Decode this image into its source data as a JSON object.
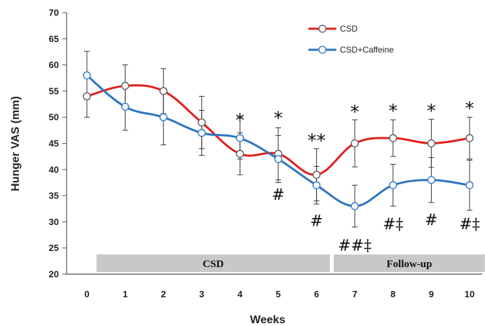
{
  "chart_data": {
    "type": "line",
    "title": "",
    "xlabel": "Weeks",
    "ylabel": "Hunger VAS (mm)",
    "x": [
      0,
      1,
      2,
      3,
      4,
      5,
      6,
      7,
      8,
      9,
      10
    ],
    "x_tick_labels": [
      "0",
      "1",
      "2",
      "3",
      "4",
      "5",
      "6",
      "7",
      "8",
      "9",
      "10"
    ],
    "ylim": [
      20,
      70
    ],
    "y_ticks": [
      20,
      25,
      30,
      35,
      40,
      45,
      50,
      55,
      60,
      65,
      70
    ],
    "y_tick_labels": [
      "20",
      "25",
      "30",
      "35",
      "40",
      "45",
      "50",
      "55",
      "60",
      "65",
      "70"
    ],
    "grid": false,
    "legend_position": "top-right",
    "series": [
      {
        "name": "CSD",
        "color": "#e0201b",
        "values": [
          54,
          56,
          55,
          49,
          43,
          43,
          39,
          45,
          46,
          45,
          46
        ],
        "error": [
          4,
          4,
          4.3,
          5,
          4,
          5,
          5,
          4.5,
          3.5,
          4.6,
          4
        ]
      },
      {
        "name": "CSD+Caffeine",
        "color": "#2e75c0",
        "values": [
          58,
          52,
          50,
          47,
          46,
          42,
          37,
          33,
          37,
          38,
          37
        ],
        "error": [
          4.6,
          4.5,
          5.3,
          4.3,
          4,
          4.5,
          3.6,
          4,
          4,
          4.3,
          4.8
        ]
      }
    ],
    "phases": [
      {
        "label": "CSD",
        "from": 0.25,
        "to": 6.35
      },
      {
        "label": "Follow-up",
        "from": 6.45,
        "to": 10.4
      }
    ],
    "annotations": [
      {
        "x": 4,
        "y": 48.2,
        "text": "*",
        "kind": "star"
      },
      {
        "x": 5,
        "y": 48.6,
        "text": "*",
        "kind": "star"
      },
      {
        "x": 6,
        "y": 44.3,
        "text": "**",
        "kind": "star"
      },
      {
        "x": 7,
        "y": 49.8,
        "text": "*",
        "kind": "star"
      },
      {
        "x": 8,
        "y": 50.0,
        "text": "*",
        "kind": "star"
      },
      {
        "x": 9,
        "y": 50.0,
        "text": "*",
        "kind": "star"
      },
      {
        "x": 10,
        "y": 50.5,
        "text": "*",
        "kind": "star"
      },
      {
        "x": 5,
        "y": 34.2,
        "text": "#",
        "kind": "mark"
      },
      {
        "x": 6,
        "y": 29.2,
        "text": "#",
        "kind": "mark"
      },
      {
        "x": 7,
        "y": 24.5,
        "text": "##‡",
        "kind": "mark"
      },
      {
        "x": 8,
        "y": 28.6,
        "text": "#‡",
        "kind": "mark"
      },
      {
        "x": 9,
        "y": 29.4,
        "text": "#",
        "kind": "mark"
      },
      {
        "x": 10,
        "y": 28.6,
        "text": "#‡",
        "kind": "mark"
      }
    ]
  }
}
